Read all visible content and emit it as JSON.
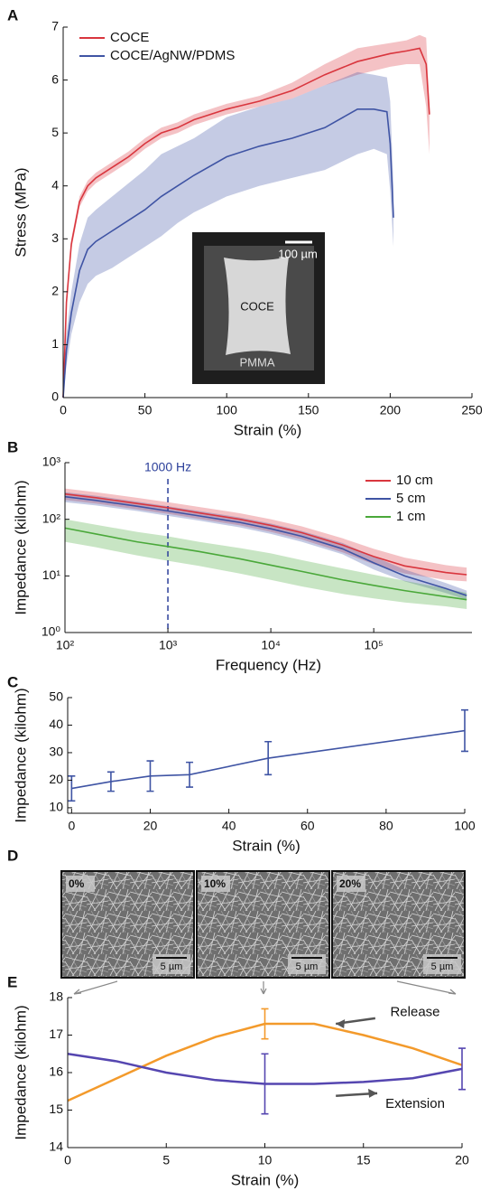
{
  "chart_data": [
    {
      "type": "line",
      "panel_label": "A",
      "x_label": "Strain (%)",
      "y_label": "Stress (MPa)",
      "xlim": [
        0,
        250
      ],
      "xticks": [
        0,
        50,
        100,
        150,
        200,
        250
      ],
      "ylim": [
        0,
        7
      ],
      "yticks": [
        0,
        1,
        2,
        3,
        4,
        5,
        6,
        7
      ],
      "legend": "upper left",
      "inset": {
        "scale_bar": "100 µm",
        "labels": [
          "COCE",
          "PMMA"
        ]
      },
      "series": [
        {
          "name": "COCE",
          "color": "#d9363e",
          "x": [
            0,
            2,
            5,
            10,
            15,
            20,
            30,
            40,
            50,
            60,
            70,
            80,
            100,
            120,
            140,
            160,
            180,
            200,
            210,
            218,
            222,
            224
          ],
          "values": [
            0,
            1.8,
            2.9,
            3.7,
            4.0,
            4.15,
            4.35,
            4.55,
            4.8,
            5.0,
            5.1,
            5.25,
            5.45,
            5.6,
            5.8,
            6.1,
            6.35,
            6.5,
            6.55,
            6.6,
            6.3,
            5.35
          ],
          "lower": [
            0,
            1.7,
            2.8,
            3.6,
            3.9,
            4.05,
            4.25,
            4.45,
            4.7,
            4.9,
            5.0,
            5.15,
            5.35,
            5.5,
            5.65,
            5.9,
            6.1,
            6.25,
            6.3,
            6.3,
            5.5,
            4.6
          ],
          "upper": [
            0,
            1.9,
            3.0,
            3.8,
            4.1,
            4.25,
            4.45,
            4.65,
            4.9,
            5.1,
            5.2,
            5.35,
            5.55,
            5.7,
            5.95,
            6.3,
            6.6,
            6.7,
            6.75,
            6.85,
            6.8,
            5.5
          ]
        },
        {
          "name": "COCE/AgNW/PDMS",
          "color": "#3f54a4",
          "x": [
            0,
            2,
            5,
            10,
            15,
            20,
            30,
            40,
            50,
            60,
            70,
            80,
            100,
            120,
            140,
            160,
            180,
            190,
            198,
            200,
            202
          ],
          "values": [
            0,
            0.9,
            1.6,
            2.4,
            2.8,
            2.95,
            3.15,
            3.35,
            3.55,
            3.8,
            4.0,
            4.2,
            4.55,
            4.75,
            4.9,
            5.1,
            5.45,
            5.45,
            5.4,
            4.8,
            3.4
          ],
          "lower": [
            0,
            0.6,
            1.2,
            1.8,
            2.15,
            2.3,
            2.45,
            2.65,
            2.85,
            3.05,
            3.3,
            3.5,
            3.8,
            4.0,
            4.15,
            4.3,
            4.6,
            4.7,
            4.6,
            3.9,
            2.85
          ],
          "upper": [
            0,
            1.2,
            2.0,
            2.9,
            3.4,
            3.55,
            3.8,
            4.05,
            4.3,
            4.6,
            4.75,
            4.9,
            5.3,
            5.5,
            5.65,
            5.9,
            6.15,
            6.1,
            6.05,
            5.6,
            4.0
          ]
        }
      ]
    },
    {
      "type": "line",
      "panel_label": "B",
      "x_label": "Frequency (Hz)",
      "y_label": "Impedance (kilohm)",
      "xlog": true,
      "ylog": true,
      "xlim": [
        100,
        900000
      ],
      "xticks": [
        {
          "value": 100,
          "label": "10²"
        },
        {
          "value": 1000,
          "label": "10³"
        },
        {
          "value": 10000,
          "label": "10⁴"
        },
        {
          "value": 100000,
          "label": "10⁵"
        }
      ],
      "ylim": [
        1,
        1000
      ],
      "yticks": [
        {
          "value": 1,
          "label": "10⁰"
        },
        {
          "value": 10,
          "label": "10¹"
        },
        {
          "value": 100,
          "label": "10²"
        },
        {
          "value": 1000,
          "label": "10³"
        }
      ],
      "legend": "upper right",
      "vline": {
        "x": 1000,
        "label": "1000 Hz",
        "color": "#2b3f9a"
      },
      "series": [
        {
          "name": "10 cm",
          "color": "#d9363e",
          "x": [
            100,
            200,
            500,
            1000,
            2000,
            5000,
            10000,
            20000,
            50000,
            100000,
            200000,
            500000,
            800000
          ],
          "values": [
            280,
            240,
            190,
            160,
            130,
            100,
            78,
            58,
            35,
            22,
            15,
            11.5,
            10.5
          ],
          "lower": [
            220,
            190,
            150,
            125,
            102,
            78,
            60,
            44,
            26,
            16,
            11,
            8.5,
            8
          ],
          "upper": [
            350,
            300,
            240,
            200,
            165,
            128,
            100,
            75,
            46,
            30,
            21,
            15.5,
            14
          ]
        },
        {
          "name": "5 cm",
          "color": "#3f54a4",
          "x": [
            100,
            200,
            500,
            1000,
            2000,
            5000,
            10000,
            20000,
            50000,
            100000,
            200000,
            500000,
            800000
          ],
          "values": [
            250,
            215,
            170,
            140,
            115,
            88,
            68,
            50,
            30,
            17,
            10,
            6,
            4.5
          ],
          "lower": [
            200,
            175,
            140,
            115,
            95,
            72,
            55,
            40,
            24,
            13,
            8,
            5,
            3.8
          ],
          "upper": [
            300,
            260,
            205,
            170,
            140,
            108,
            84,
            62,
            38,
            22,
            13,
            7.5,
            5.5
          ]
        },
        {
          "name": "1 cm",
          "color": "#4aa83a",
          "x": [
            100,
            200,
            500,
            1000,
            2000,
            5000,
            10000,
            20000,
            50000,
            100000,
            200000,
            500000,
            800000
          ],
          "values": [
            70,
            55,
            40,
            33,
            27,
            20,
            15.5,
            12,
            8.5,
            6.8,
            5.5,
            4.3,
            3.8
          ],
          "lower": [
            40,
            32,
            23,
            18.5,
            15,
            11,
            8.5,
            6.5,
            4.8,
            4,
            3.4,
            2.9,
            2.6
          ],
          "upper": [
            100,
            80,
            60,
            50,
            40,
            31,
            25,
            19,
            13.5,
            10.5,
            8.2,
            6,
            5
          ]
        }
      ]
    },
    {
      "type": "line",
      "panel_label": "C",
      "x_label": "Strain (%)",
      "y_label": "Impedance (kilohm)",
      "xlim": [
        -1,
        100
      ],
      "xticks": [
        0,
        20,
        40,
        60,
        80,
        100
      ],
      "ylim": [
        8,
        50
      ],
      "yticks": [
        10,
        20,
        30,
        40,
        50
      ],
      "series": [
        {
          "color": "#3f54a4",
          "x": [
            0,
            10,
            20,
            30,
            50,
            100
          ],
          "values": [
            17,
            19.5,
            21.5,
            22,
            28,
            38
          ],
          "errors": [
            4.5,
            3.5,
            5.5,
            4.5,
            6,
            7.5
          ]
        }
      ]
    },
    {
      "type": "image",
      "panel_label": "D",
      "panels": [
        {
          "label": "0%",
          "scale_bar": "5 µm"
        },
        {
          "label": "10%",
          "scale_bar": "5 µm"
        },
        {
          "label": "20%",
          "scale_bar": "5 µm"
        }
      ]
    },
    {
      "type": "line",
      "panel_label": "E",
      "x_label": "Strain (%)",
      "y_label": "Impedance (kilohm)",
      "xlim": [
        0,
        20
      ],
      "xticks": [
        0,
        5,
        10,
        15,
        20
      ],
      "ylim": [
        14,
        18
      ],
      "yticks": [
        14,
        15,
        16,
        17,
        18
      ],
      "annotations": [
        "Release",
        "Extension"
      ],
      "series": [
        {
          "color": "#f39a2b",
          "x": [
            0,
            2.5,
            5,
            7.5,
            10,
            12.5,
            15,
            17.5,
            20
          ],
          "values": [
            15.25,
            15.85,
            16.45,
            16.95,
            17.3,
            17.3,
            17.0,
            16.65,
            16.2
          ],
          "errors": [
            null,
            null,
            null,
            null,
            0.4,
            null,
            null,
            null,
            null
          ]
        },
        {
          "color": "#5546b0",
          "x": [
            0,
            2.5,
            5,
            7.5,
            10,
            12.5,
            15,
            17.5,
            20
          ],
          "values": [
            16.5,
            16.3,
            16.0,
            15.8,
            15.7,
            15.7,
            15.75,
            15.85,
            16.1
          ],
          "errors": [
            null,
            null,
            null,
            null,
            0.8,
            null,
            null,
            null,
            0.55
          ]
        }
      ]
    }
  ]
}
